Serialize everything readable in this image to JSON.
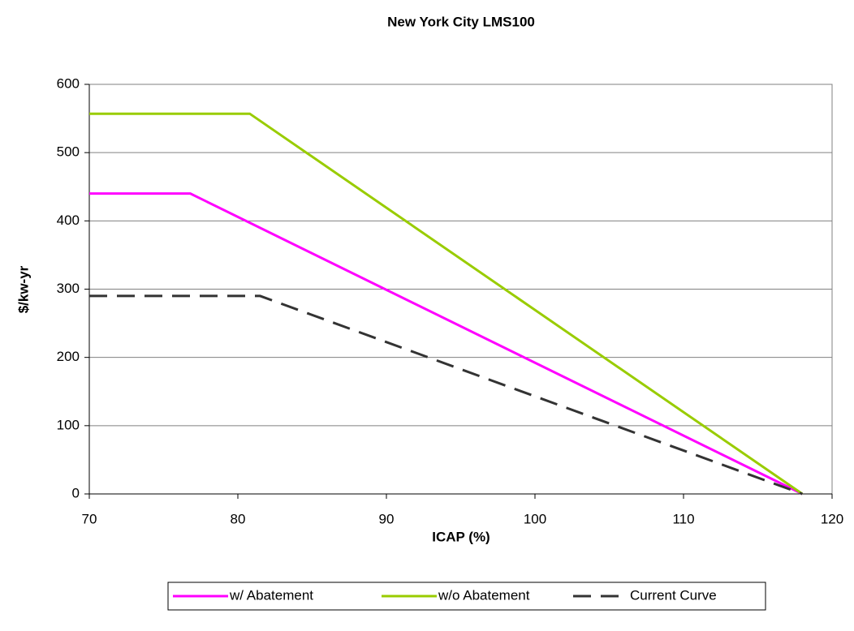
{
  "chart_data": {
    "type": "line",
    "title": "New York City LMS100",
    "x_label": "ICAP (%)",
    "y_label": "$/kw-yr",
    "xlim": [
      70,
      120
    ],
    "xticks": [
      70,
      80,
      90,
      100,
      110,
      120
    ],
    "ylim": [
      0,
      600
    ],
    "yticks": [
      0,
      100,
      200,
      300,
      400,
      500,
      600
    ],
    "grid": true,
    "legend": "bottom",
    "series": [
      {
        "name": "w/ Abatement",
        "color": "#ff00ff",
        "dash": "solid",
        "x": [
          70,
          76.8,
          118
        ],
        "values": [
          440,
          440,
          0
        ]
      },
      {
        "name": "w/o Abatement",
        "color": "#99cc00",
        "dash": "solid",
        "x": [
          70,
          80.8,
          118
        ],
        "values": [
          557,
          557,
          0
        ]
      },
      {
        "name": "Current Curve",
        "color": "#333333",
        "dash": "dashed",
        "x": [
          70,
          81.5,
          118
        ],
        "values": [
          290,
          290,
          0
        ]
      }
    ]
  }
}
